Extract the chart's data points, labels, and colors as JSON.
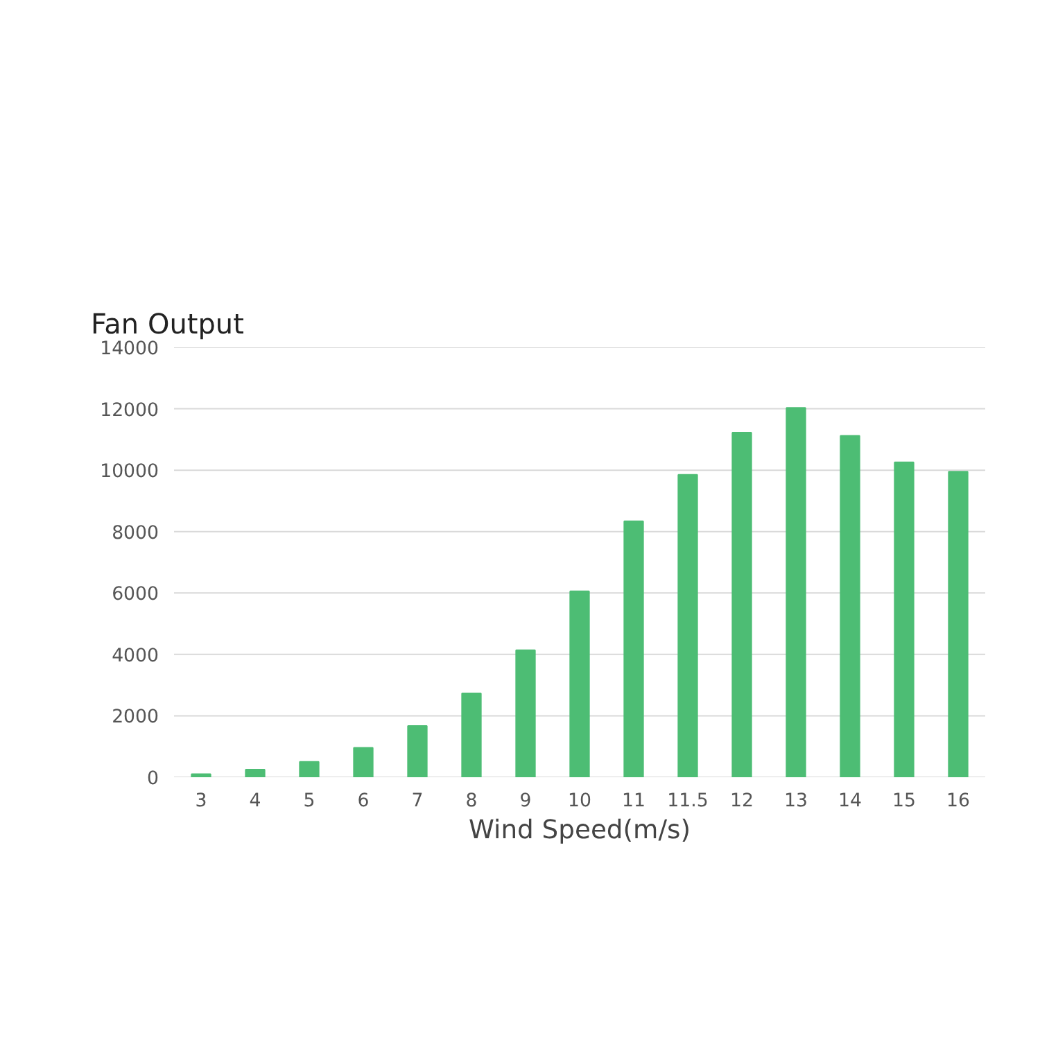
{
  "chart_data": {
    "type": "bar",
    "title": "Fan Output",
    "xlabel": "Wind Speed(m/s)",
    "categories": [
      "3",
      "4",
      "5",
      "6",
      "7",
      "8",
      "9",
      "10",
      "11",
      "11.5",
      "12",
      "13",
      "14",
      "15",
      "16"
    ],
    "values": [
      100,
      250,
      500,
      960,
      1670,
      2730,
      4140,
      6060,
      8340,
      9850,
      11220,
      12030,
      11120,
      10260,
      9950
    ],
    "color": "#4dbd74",
    "ylim": [
      0,
      14000
    ],
    "yticks": [
      0,
      2000,
      4000,
      6000,
      8000,
      10000,
      12000,
      14000
    ],
    "grid": "y"
  }
}
